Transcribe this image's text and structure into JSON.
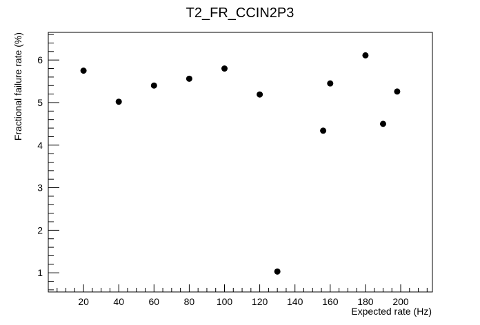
{
  "chart_data": {
    "type": "scatter",
    "title": "T2_FR_CCIN2P3",
    "xlabel": "Expected rate (Hz)",
    "ylabel": "Fractional failure rate (%)",
    "xlim": [
      0,
      218
    ],
    "ylim": [
      0.55,
      6.65
    ],
    "x_ticks": [
      "20",
      "40",
      "60",
      "80",
      "100",
      "120",
      "140",
      "160",
      "180",
      "200"
    ],
    "y_ticks": [
      "1",
      "2",
      "3",
      "4",
      "5",
      "6"
    ],
    "grid": false,
    "legend": "none",
    "marker_color": "#000000",
    "points": [
      {
        "x": 20,
        "y": 5.75
      },
      {
        "x": 40,
        "y": 5.02
      },
      {
        "x": 60,
        "y": 5.4
      },
      {
        "x": 80,
        "y": 5.56
      },
      {
        "x": 100,
        "y": 5.8
      },
      {
        "x": 120,
        "y": 5.19
      },
      {
        "x": 130,
        "y": 1.03
      },
      {
        "x": 156,
        "y": 4.34
      },
      {
        "x": 160,
        "y": 5.45
      },
      {
        "x": 180,
        "y": 6.11
      },
      {
        "x": 190,
        "y": 4.5
      },
      {
        "x": 198,
        "y": 5.26
      }
    ]
  }
}
